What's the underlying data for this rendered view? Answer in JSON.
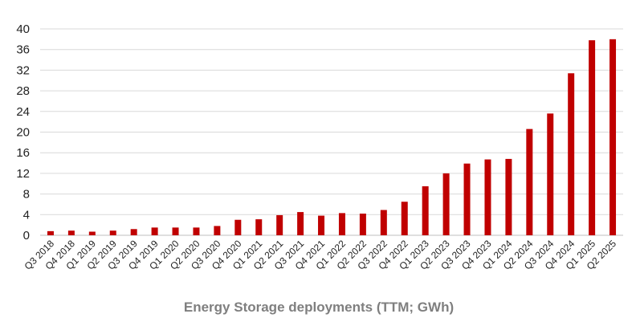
{
  "chart_data": {
    "type": "bar",
    "title": "",
    "xlabel": "Energy Storage deployments (TTM; GWh)",
    "ylabel": "",
    "ylim": [
      0,
      40
    ],
    "yticks": [
      0,
      4,
      8,
      12,
      16,
      20,
      24,
      28,
      32,
      36,
      40
    ],
    "grid": true,
    "bar_color": "#c00000",
    "categories": [
      "Q3 2018",
      "Q4 2018",
      "Q1 2019",
      "Q2 2019",
      "Q3 2019",
      "Q4 2019",
      "Q1 2020",
      "Q2 2020",
      "Q3 2020",
      "Q4 2020",
      "Q1 2021",
      "Q2 2021",
      "Q3 2021",
      "Q4 2021",
      "Q1 2022",
      "Q2 2022",
      "Q3 2022",
      "Q4 2022",
      "Q1 2023",
      "Q2 2023",
      "Q3 2023",
      "Q4 2023",
      "Q1 2024",
      "Q2 2024",
      "Q3 2024",
      "Q4 2024",
      "Q1 2025",
      "Q2 2025"
    ],
    "values": [
      0.8,
      0.9,
      0.7,
      0.9,
      1.2,
      1.5,
      1.5,
      1.5,
      1.8,
      3.0,
      3.1,
      3.9,
      4.5,
      3.8,
      4.3,
      4.2,
      4.9,
      6.5,
      9.5,
      12.0,
      13.9,
      14.7,
      14.8,
      20.6,
      23.6,
      31.4,
      37.8,
      38.0
    ]
  }
}
